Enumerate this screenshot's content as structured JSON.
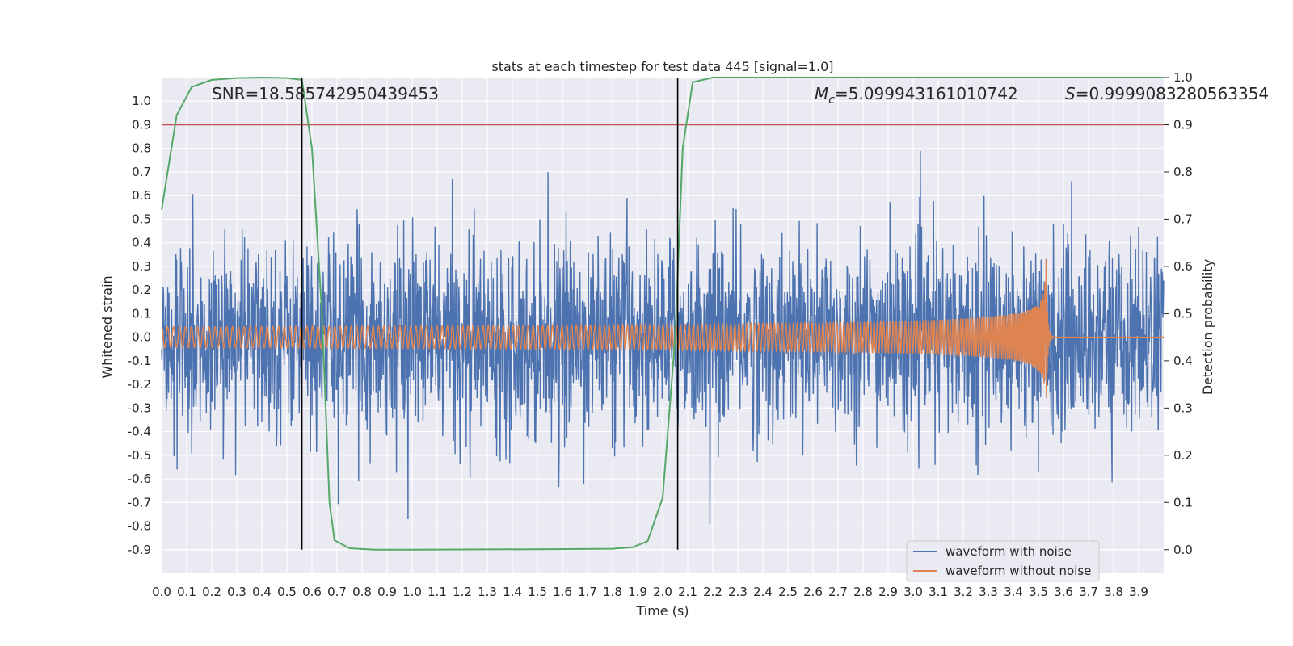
{
  "chart_data": {
    "type": "line",
    "title": "stats at each timestep for test data 445 [signal=1.0]",
    "xlabel": "Time (s)",
    "ylabel": "Whitened strain",
    "y2label": "Detection probability",
    "xlim": [
      0.0,
      4.0
    ],
    "ylim": [
      -1.0,
      1.1
    ],
    "y2lim": [
      -0.05,
      1.0
    ],
    "x_ticks": [
      "0.0",
      "0.1",
      "0.2",
      "0.3",
      "0.4",
      "0.5",
      "0.6",
      "0.7",
      "0.8",
      "0.9",
      "1.0",
      "1.1",
      "1.2",
      "1.3",
      "1.4",
      "1.5",
      "1.6",
      "1.7",
      "1.8",
      "1.9",
      "2.0",
      "2.1",
      "2.2",
      "2.3",
      "2.4",
      "2.5",
      "2.6",
      "2.7",
      "2.8",
      "2.9",
      "3.0",
      "3.1",
      "3.2",
      "3.3",
      "3.4",
      "3.5",
      "3.6",
      "3.7",
      "3.8",
      "3.9"
    ],
    "y_ticks": [
      "1.0",
      "0.9",
      "0.8",
      "0.7",
      "0.6",
      "0.5",
      "0.4",
      "0.3",
      "0.2",
      "0.1",
      "0.0",
      "-0.1",
      "-0.2",
      "-0.3",
      "-0.4",
      "-0.5",
      "-0.6",
      "-0.7",
      "-0.8",
      "-0.9"
    ],
    "y2_ticks": [
      "1.0",
      "0.9",
      "0.8",
      "0.7",
      "0.6",
      "0.5",
      "0.4",
      "0.3",
      "0.2",
      "0.1",
      "0.0"
    ],
    "grid": true,
    "legend_position": "bottom-right",
    "annotations": {
      "snr": "SNR=18.585742950439453",
      "mc": "=5.099943161010742",
      "mc_symbol": "M",
      "mc_sub": "c",
      "s": "=0.9999083280563354",
      "s_symbol": "S"
    },
    "threshold_y2": 0.9,
    "vertical_markers_x": [
      0.56,
      2.06
    ],
    "series": [
      {
        "name": "waveform with noise",
        "color": "#4c72b0",
        "kind": "noise",
        "sigma": 0.2,
        "max_abs": 1.0
      },
      {
        "name": "waveform without noise",
        "color": "#dd8452",
        "kind": "chirp",
        "merger_x": 3.53,
        "amp_start": 0.05,
        "amp_peak": 0.42,
        "ringdown_end_x": 3.56
      },
      {
        "name": "detection probability",
        "color": "#55a868",
        "axis": "y2",
        "x": [
          0.0,
          0.06,
          0.12,
          0.2,
          0.3,
          0.4,
          0.5,
          0.56,
          0.6,
          0.64,
          0.67,
          0.69,
          0.75,
          0.85,
          1.0,
          1.5,
          1.8,
          1.88,
          1.94,
          2.0,
          2.05,
          2.08,
          2.12,
          2.2,
          2.5,
          3.0,
          3.5,
          4.0
        ],
        "y": [
          0.72,
          0.92,
          0.98,
          0.995,
          0.999,
          1.0,
          0.999,
          0.995,
          0.85,
          0.5,
          0.1,
          0.02,
          0.003,
          0.0,
          0.0,
          0.001,
          0.002,
          0.005,
          0.018,
          0.11,
          0.45,
          0.85,
          0.99,
          1.0,
          1.0,
          1.0,
          1.0,
          1.0
        ]
      }
    ]
  }
}
